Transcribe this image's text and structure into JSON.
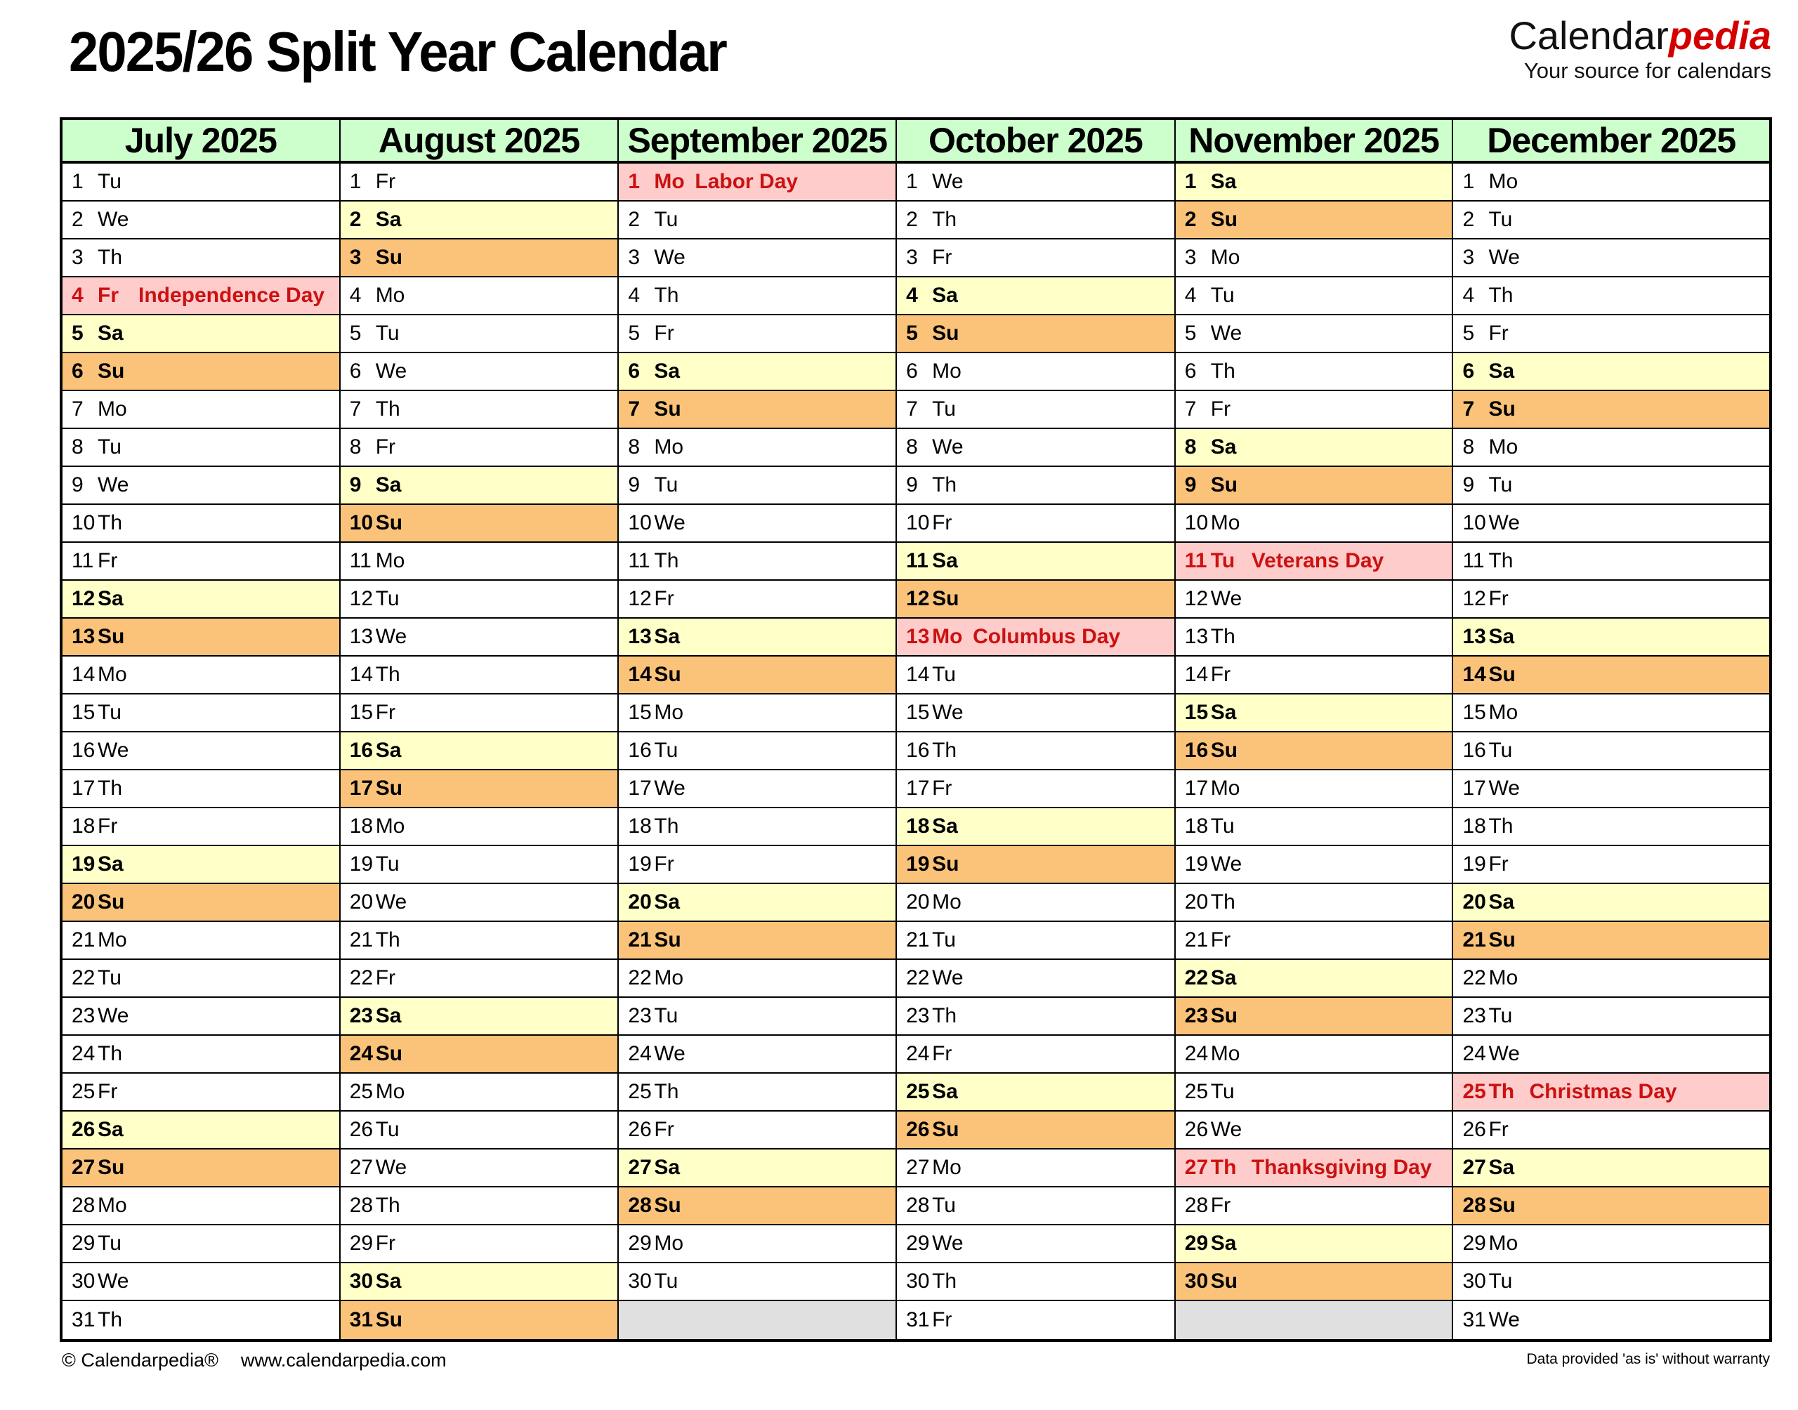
{
  "page": {
    "title": "2025/26 Split Year Calendar"
  },
  "logo": {
    "brand_black": "Calendar",
    "brand_red": "pedia",
    "tagline": "Your source for calendars"
  },
  "footer": {
    "copyright": "© Calendarpedia®",
    "url": "www.calendarpedia.com",
    "disclaimer": "Data provided 'as is' without warranty"
  },
  "colors": {
    "header_green": "#ccffcc",
    "saturday_yellow": "#ffffc8",
    "sunday_orange": "#fbc379",
    "holiday_pink": "#ffcccc",
    "holiday_red": "#cc1111",
    "empty_gray": "#e0e0e0",
    "brand_red": "#d40000",
    "border_black": "#000000"
  },
  "months": [
    {
      "name": "July 2025",
      "days": [
        {
          "d": 1,
          "w": "Tu"
        },
        {
          "d": 2,
          "w": "We"
        },
        {
          "d": 3,
          "w": "Th"
        },
        {
          "d": 4,
          "w": "Fr",
          "h": "Independence Day"
        },
        {
          "d": 5,
          "w": "Sa"
        },
        {
          "d": 6,
          "w": "Su"
        },
        {
          "d": 7,
          "w": "Mo"
        },
        {
          "d": 8,
          "w": "Tu"
        },
        {
          "d": 9,
          "w": "We"
        },
        {
          "d": 10,
          "w": "Th"
        },
        {
          "d": 11,
          "w": "Fr"
        },
        {
          "d": 12,
          "w": "Sa"
        },
        {
          "d": 13,
          "w": "Su"
        },
        {
          "d": 14,
          "w": "Mo"
        },
        {
          "d": 15,
          "w": "Tu"
        },
        {
          "d": 16,
          "w": "We"
        },
        {
          "d": 17,
          "w": "Th"
        },
        {
          "d": 18,
          "w": "Fr"
        },
        {
          "d": 19,
          "w": "Sa"
        },
        {
          "d": 20,
          "w": "Su"
        },
        {
          "d": 21,
          "w": "Mo"
        },
        {
          "d": 22,
          "w": "Tu"
        },
        {
          "d": 23,
          "w": "We"
        },
        {
          "d": 24,
          "w": "Th"
        },
        {
          "d": 25,
          "w": "Fr"
        },
        {
          "d": 26,
          "w": "Sa"
        },
        {
          "d": 27,
          "w": "Su"
        },
        {
          "d": 28,
          "w": "Mo"
        },
        {
          "d": 29,
          "w": "Tu"
        },
        {
          "d": 30,
          "w": "We"
        },
        {
          "d": 31,
          "w": "Th"
        }
      ]
    },
    {
      "name": "August 2025",
      "days": [
        {
          "d": 1,
          "w": "Fr"
        },
        {
          "d": 2,
          "w": "Sa"
        },
        {
          "d": 3,
          "w": "Su"
        },
        {
          "d": 4,
          "w": "Mo"
        },
        {
          "d": 5,
          "w": "Tu"
        },
        {
          "d": 6,
          "w": "We"
        },
        {
          "d": 7,
          "w": "Th"
        },
        {
          "d": 8,
          "w": "Fr"
        },
        {
          "d": 9,
          "w": "Sa"
        },
        {
          "d": 10,
          "w": "Su"
        },
        {
          "d": 11,
          "w": "Mo"
        },
        {
          "d": 12,
          "w": "Tu"
        },
        {
          "d": 13,
          "w": "We"
        },
        {
          "d": 14,
          "w": "Th"
        },
        {
          "d": 15,
          "w": "Fr"
        },
        {
          "d": 16,
          "w": "Sa"
        },
        {
          "d": 17,
          "w": "Su"
        },
        {
          "d": 18,
          "w": "Mo"
        },
        {
          "d": 19,
          "w": "Tu"
        },
        {
          "d": 20,
          "w": "We"
        },
        {
          "d": 21,
          "w": "Th"
        },
        {
          "d": 22,
          "w": "Fr"
        },
        {
          "d": 23,
          "w": "Sa"
        },
        {
          "d": 24,
          "w": "Su"
        },
        {
          "d": 25,
          "w": "Mo"
        },
        {
          "d": 26,
          "w": "Tu"
        },
        {
          "d": 27,
          "w": "We"
        },
        {
          "d": 28,
          "w": "Th"
        },
        {
          "d": 29,
          "w": "Fr"
        },
        {
          "d": 30,
          "w": "Sa"
        },
        {
          "d": 31,
          "w": "Su"
        }
      ]
    },
    {
      "name": "September 2025",
      "days": [
        {
          "d": 1,
          "w": "Mo",
          "h": "Labor Day"
        },
        {
          "d": 2,
          "w": "Tu"
        },
        {
          "d": 3,
          "w": "We"
        },
        {
          "d": 4,
          "w": "Th"
        },
        {
          "d": 5,
          "w": "Fr"
        },
        {
          "d": 6,
          "w": "Sa"
        },
        {
          "d": 7,
          "w": "Su"
        },
        {
          "d": 8,
          "w": "Mo"
        },
        {
          "d": 9,
          "w": "Tu"
        },
        {
          "d": 10,
          "w": "We"
        },
        {
          "d": 11,
          "w": "Th"
        },
        {
          "d": 12,
          "w": "Fr"
        },
        {
          "d": 13,
          "w": "Sa"
        },
        {
          "d": 14,
          "w": "Su"
        },
        {
          "d": 15,
          "w": "Mo"
        },
        {
          "d": 16,
          "w": "Tu"
        },
        {
          "d": 17,
          "w": "We"
        },
        {
          "d": 18,
          "w": "Th"
        },
        {
          "d": 19,
          "w": "Fr"
        },
        {
          "d": 20,
          "w": "Sa"
        },
        {
          "d": 21,
          "w": "Su"
        },
        {
          "d": 22,
          "w": "Mo"
        },
        {
          "d": 23,
          "w": "Tu"
        },
        {
          "d": 24,
          "w": "We"
        },
        {
          "d": 25,
          "w": "Th"
        },
        {
          "d": 26,
          "w": "Fr"
        },
        {
          "d": 27,
          "w": "Sa"
        },
        {
          "d": 28,
          "w": "Su"
        },
        {
          "d": 29,
          "w": "Mo"
        },
        {
          "d": 30,
          "w": "Tu"
        }
      ]
    },
    {
      "name": "October 2025",
      "days": [
        {
          "d": 1,
          "w": "We"
        },
        {
          "d": 2,
          "w": "Th"
        },
        {
          "d": 3,
          "w": "Fr"
        },
        {
          "d": 4,
          "w": "Sa"
        },
        {
          "d": 5,
          "w": "Su"
        },
        {
          "d": 6,
          "w": "Mo"
        },
        {
          "d": 7,
          "w": "Tu"
        },
        {
          "d": 8,
          "w": "We"
        },
        {
          "d": 9,
          "w": "Th"
        },
        {
          "d": 10,
          "w": "Fr"
        },
        {
          "d": 11,
          "w": "Sa"
        },
        {
          "d": 12,
          "w": "Su"
        },
        {
          "d": 13,
          "w": "Mo",
          "h": "Columbus Day"
        },
        {
          "d": 14,
          "w": "Tu"
        },
        {
          "d": 15,
          "w": "We"
        },
        {
          "d": 16,
          "w": "Th"
        },
        {
          "d": 17,
          "w": "Fr"
        },
        {
          "d": 18,
          "w": "Sa"
        },
        {
          "d": 19,
          "w": "Su"
        },
        {
          "d": 20,
          "w": "Mo"
        },
        {
          "d": 21,
          "w": "Tu"
        },
        {
          "d": 22,
          "w": "We"
        },
        {
          "d": 23,
          "w": "Th"
        },
        {
          "d": 24,
          "w": "Fr"
        },
        {
          "d": 25,
          "w": "Sa"
        },
        {
          "d": 26,
          "w": "Su"
        },
        {
          "d": 27,
          "w": "Mo"
        },
        {
          "d": 28,
          "w": "Tu"
        },
        {
          "d": 29,
          "w": "We"
        },
        {
          "d": 30,
          "w": "Th"
        },
        {
          "d": 31,
          "w": "Fr"
        }
      ]
    },
    {
      "name": "November 2025",
      "days": [
        {
          "d": 1,
          "w": "Sa"
        },
        {
          "d": 2,
          "w": "Su"
        },
        {
          "d": 3,
          "w": "Mo"
        },
        {
          "d": 4,
          "w": "Tu"
        },
        {
          "d": 5,
          "w": "We"
        },
        {
          "d": 6,
          "w": "Th"
        },
        {
          "d": 7,
          "w": "Fr"
        },
        {
          "d": 8,
          "w": "Sa"
        },
        {
          "d": 9,
          "w": "Su"
        },
        {
          "d": 10,
          "w": "Mo"
        },
        {
          "d": 11,
          "w": "Tu",
          "h": "Veterans Day"
        },
        {
          "d": 12,
          "w": "We"
        },
        {
          "d": 13,
          "w": "Th"
        },
        {
          "d": 14,
          "w": "Fr"
        },
        {
          "d": 15,
          "w": "Sa"
        },
        {
          "d": 16,
          "w": "Su"
        },
        {
          "d": 17,
          "w": "Mo"
        },
        {
          "d": 18,
          "w": "Tu"
        },
        {
          "d": 19,
          "w": "We"
        },
        {
          "d": 20,
          "w": "Th"
        },
        {
          "d": 21,
          "w": "Fr"
        },
        {
          "d": 22,
          "w": "Sa"
        },
        {
          "d": 23,
          "w": "Su"
        },
        {
          "d": 24,
          "w": "Mo"
        },
        {
          "d": 25,
          "w": "Tu"
        },
        {
          "d": 26,
          "w": "We"
        },
        {
          "d": 27,
          "w": "Th",
          "h": "Thanksgiving Day"
        },
        {
          "d": 28,
          "w": "Fr"
        },
        {
          "d": 29,
          "w": "Sa"
        },
        {
          "d": 30,
          "w": "Su"
        }
      ]
    },
    {
      "name": "December 2025",
      "days": [
        {
          "d": 1,
          "w": "Mo"
        },
        {
          "d": 2,
          "w": "Tu"
        },
        {
          "d": 3,
          "w": "We"
        },
        {
          "d": 4,
          "w": "Th"
        },
        {
          "d": 5,
          "w": "Fr"
        },
        {
          "d": 6,
          "w": "Sa"
        },
        {
          "d": 7,
          "w": "Su"
        },
        {
          "d": 8,
          "w": "Mo"
        },
        {
          "d": 9,
          "w": "Tu"
        },
        {
          "d": 10,
          "w": "We"
        },
        {
          "d": 11,
          "w": "Th"
        },
        {
          "d": 12,
          "w": "Fr"
        },
        {
          "d": 13,
          "w": "Sa"
        },
        {
          "d": 14,
          "w": "Su"
        },
        {
          "d": 15,
          "w": "Mo"
        },
        {
          "d": 16,
          "w": "Tu"
        },
        {
          "d": 17,
          "w": "We"
        },
        {
          "d": 18,
          "w": "Th"
        },
        {
          "d": 19,
          "w": "Fr"
        },
        {
          "d": 20,
          "w": "Sa"
        },
        {
          "d": 21,
          "w": "Su"
        },
        {
          "d": 22,
          "w": "Mo"
        },
        {
          "d": 23,
          "w": "Tu"
        },
        {
          "d": 24,
          "w": "We"
        },
        {
          "d": 25,
          "w": "Th",
          "h": "Christmas Day"
        },
        {
          "d": 26,
          "w": "Fr"
        },
        {
          "d": 27,
          "w": "Sa"
        },
        {
          "d": 28,
          "w": "Su"
        },
        {
          "d": 29,
          "w": "Mo"
        },
        {
          "d": 30,
          "w": "Tu"
        },
        {
          "d": 31,
          "w": "We"
        }
      ]
    }
  ]
}
